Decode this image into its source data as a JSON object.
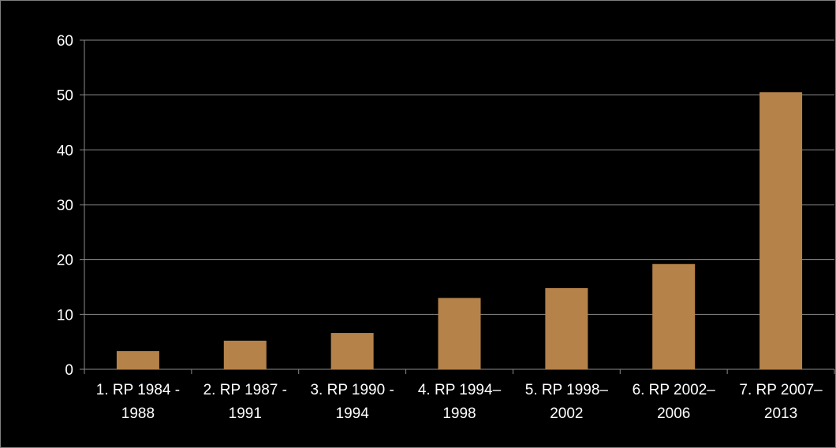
{
  "chart_data": {
    "type": "bar",
    "title": "",
    "xlabel": "",
    "ylabel": "",
    "ylim": [
      0,
      60
    ],
    "yticks": [
      0,
      10,
      20,
      30,
      40,
      50,
      60
    ],
    "grid": true,
    "legend": "none",
    "categories": [
      [
        "1. RP 1984 -",
        "1988"
      ],
      [
        "2. RP 1987 -",
        "1991"
      ],
      [
        "3. RP 1990 -",
        "1994"
      ],
      [
        "4. RP 1994–",
        "1998"
      ],
      [
        "5. RP 1998–",
        "2002"
      ],
      [
        "6. RP 2002–",
        "2006"
      ],
      [
        "7. RP 2007–",
        "2013"
      ]
    ],
    "values": [
      3.3,
      5.2,
      6.6,
      13.0,
      14.8,
      19.2,
      50.5
    ],
    "colors": {
      "bar": "#b5824a",
      "background": "#000000",
      "grid": "#8a8a8a",
      "text": "#ffffff"
    }
  }
}
